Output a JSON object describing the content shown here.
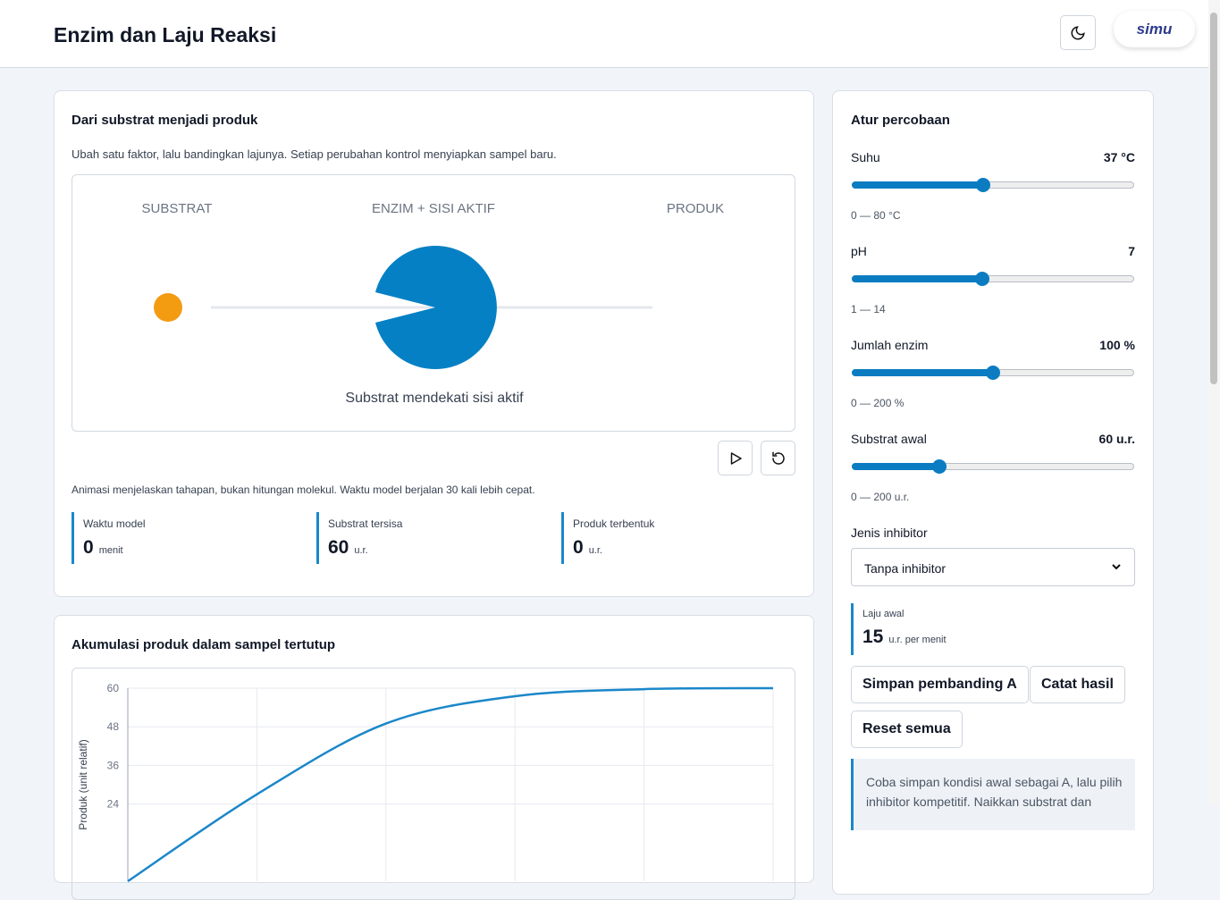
{
  "header": {
    "title": "Enzim dan Laju Reaksi",
    "logo": "simu"
  },
  "process": {
    "title": "Dari substrat menjadi produk",
    "description": "Ubah satu faktor, lalu bandingkan lajunya. Setiap perubahan kontrol menyiapkan sampel baru.",
    "stages": [
      "SUBSTRAT",
      "ENZIM + SISI AKTIF",
      "PRODUK"
    ],
    "caption": "Substrat mendekati sisi aktif",
    "note": "Animasi menjelaskan tahapan, bukan hitungan molekul. Waktu model berjalan 30 kali lebih cepat.",
    "stats": [
      {
        "label": "Waktu model",
        "value": "0",
        "unit": "menit"
      },
      {
        "label": "Substrat tersisa",
        "value": "60",
        "unit": "u.r."
      },
      {
        "label": "Produk terbentuk",
        "value": "0",
        "unit": "u.r."
      }
    ]
  },
  "controls": {
    "title": "Atur percobaan",
    "sliders": [
      {
        "label": "Suhu",
        "value_label": "37 °C",
        "range_label": "0 — 80 °C",
        "value": 37,
        "min": 0,
        "max": 80
      },
      {
        "label": "pH",
        "value_label": "7",
        "range_label": "1 — 14",
        "value": 7,
        "min": 1,
        "max": 14
      },
      {
        "label": "Jumlah enzim",
        "value_label": "100 %",
        "range_label": "0 — 200 %",
        "value": 100,
        "min": 0,
        "max": 200
      },
      {
        "label": "Substrat awal",
        "value_label": "60 u.r.",
        "range_label": "0 — 200 u.r.",
        "value": 60,
        "min": 0,
        "max": 200
      }
    ],
    "inhibitor_label": "Jenis inhibitor",
    "inhibitor_value": "Tanpa inhibitor",
    "rate": {
      "label": "Laju awal",
      "value": "15",
      "unit": "u.r. per menit"
    },
    "buttons": [
      "Simpan pembanding A",
      "Catat hasil",
      "Reset semua"
    ],
    "hint": "Coba simpan kondisi awal sebagai A, lalu pilih inhibitor kompetitif. Naikkan substrat dan"
  },
  "chart_data": {
    "type": "line",
    "title": "Akumulasi produk dalam sampel tertutup",
    "ylabel": "Produk (unit relatif)",
    "values": [
      0,
      27,
      49,
      57.5,
      59.7,
      60
    ],
    "color": "#1b87c9",
    "ylim": [
      0,
      60
    ],
    "yticks": [
      24,
      36,
      48,
      60
    ],
    "grid": true
  }
}
